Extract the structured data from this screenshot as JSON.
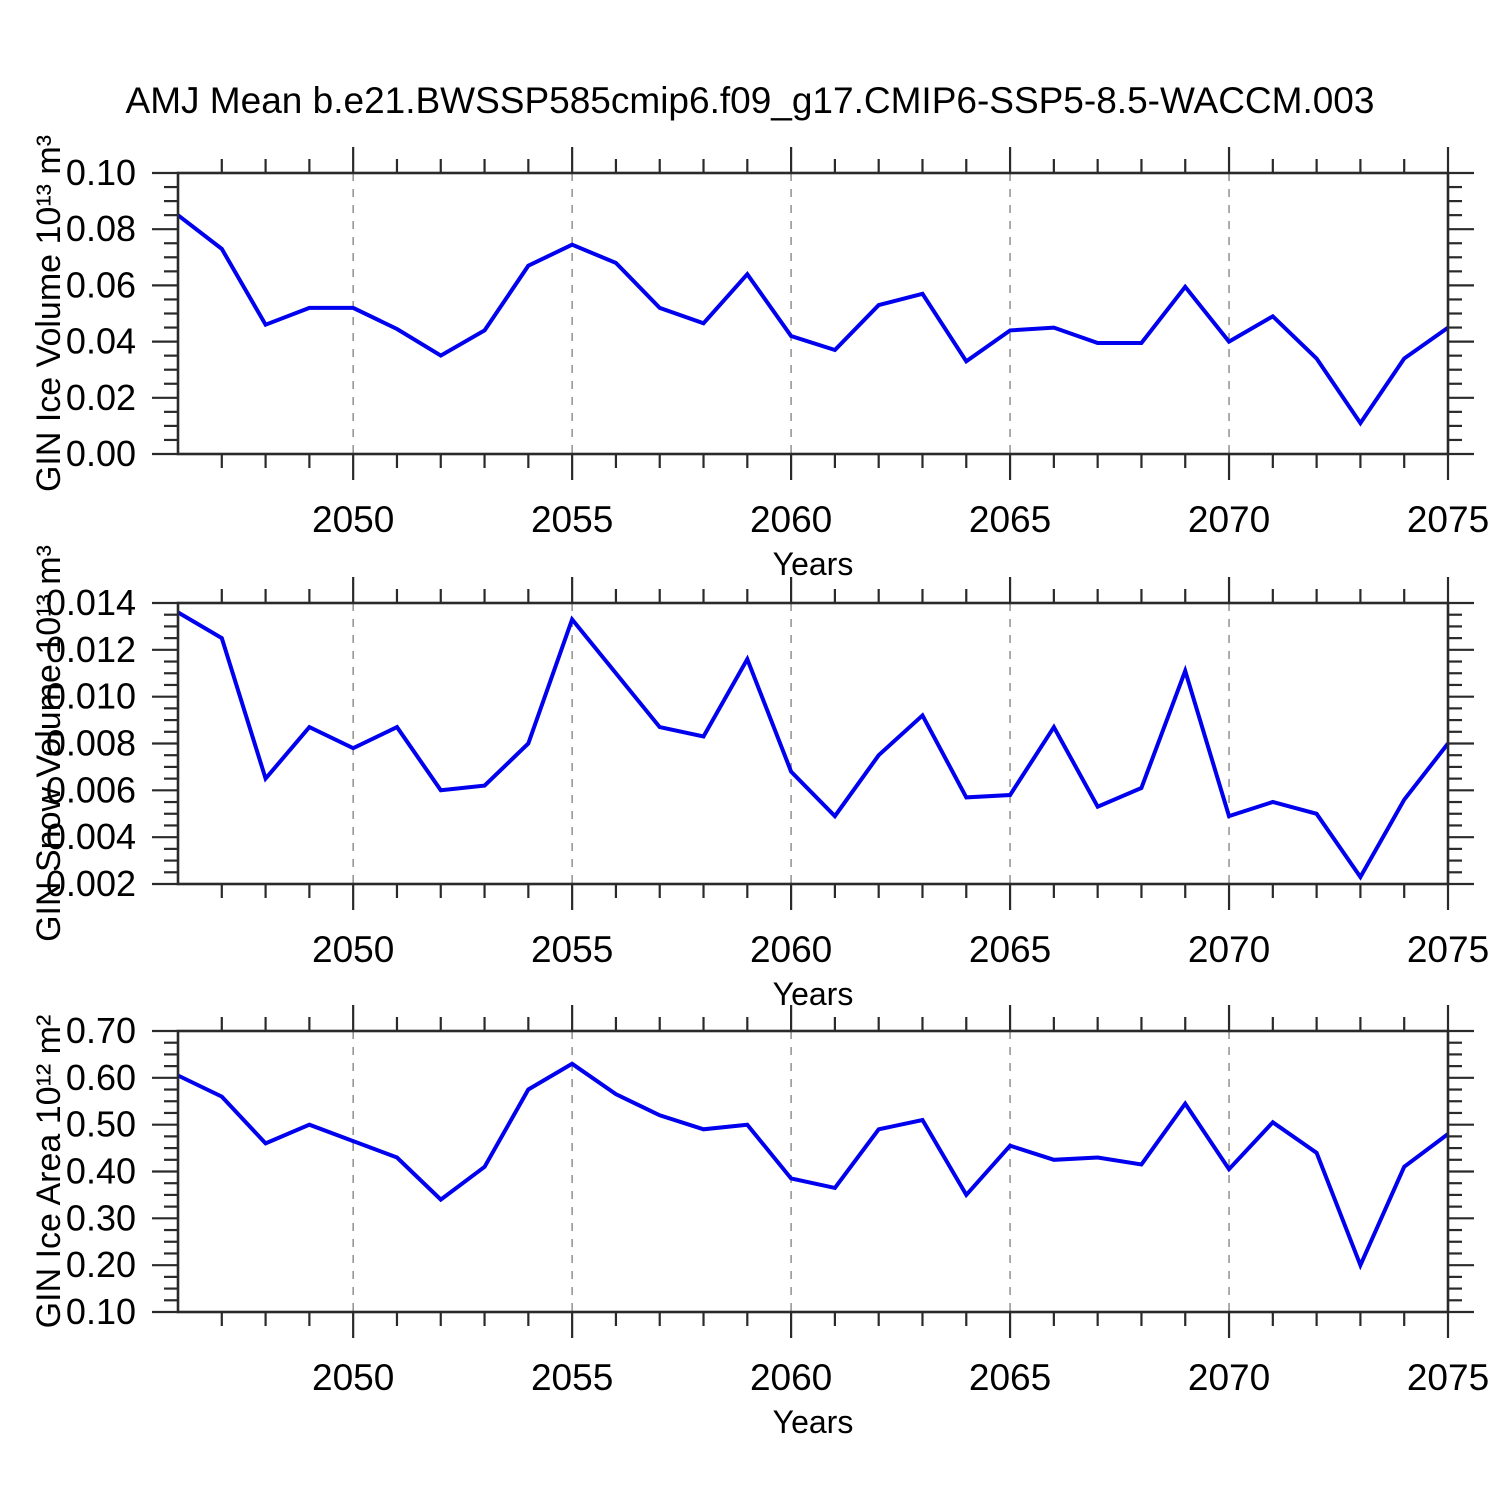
{
  "title": "AMJ Mean b.e21.BWSSP585cmip6.f09_g17.CMIP6-SSP5-8.5-WACCM.003",
  "colors": {
    "line": "#0000ee",
    "grid": "#909090",
    "axis": "#2a2a2a",
    "text": "#000000",
    "background": "#ffffff"
  },
  "chart_data": [
    {
      "type": "line",
      "name": "gin-ice-volume",
      "ylabel": "GIN Ice Volume 10¹³ m³",
      "xlabel": "Years",
      "xlim": [
        2046,
        2075
      ],
      "ylim": [
        0.0,
        0.1
      ],
      "x": [
        2046,
        2047,
        2048,
        2049,
        2050,
        2051,
        2052,
        2053,
        2054,
        2055,
        2056,
        2057,
        2058,
        2059,
        2060,
        2061,
        2062,
        2063,
        2064,
        2065,
        2066,
        2067,
        2068,
        2069,
        2070,
        2071,
        2072,
        2073,
        2074,
        2075
      ],
      "values": [
        0.085,
        0.073,
        0.046,
        0.052,
        0.052,
        0.0445,
        0.035,
        0.044,
        0.067,
        0.0745,
        0.068,
        0.052,
        0.0465,
        0.064,
        0.042,
        0.037,
        0.053,
        0.057,
        0.033,
        0.044,
        0.045,
        0.0395,
        0.0395,
        0.0595,
        0.04,
        0.049,
        0.034,
        0.011,
        0.034,
        0.045
      ],
      "xtick_values": [
        2050,
        2055,
        2060,
        2065,
        2070,
        2075
      ],
      "xtick_labels": [
        "2050",
        "2055",
        "2060",
        "2065",
        "2070",
        "2075"
      ],
      "xminor_step": 1,
      "ytick_values": [
        0.0,
        0.02,
        0.04,
        0.06,
        0.08,
        0.1
      ],
      "ytick_labels": [
        "0.00",
        "0.02",
        "0.04",
        "0.06",
        "0.08",
        "0.10"
      ],
      "yminor_step": 0.005,
      "grid_x_values": [
        2050,
        2055,
        2060,
        2065,
        2070
      ],
      "grid": "vertical-dashed",
      "legend": "none"
    },
    {
      "type": "line",
      "name": "gin-snow-volume",
      "ylabel": "GIN Snow Volume 10¹³ m³",
      "xlabel": "Years",
      "xlim": [
        2046,
        2075
      ],
      "ylim": [
        0.002,
        0.014
      ],
      "x": [
        2046,
        2047,
        2048,
        2049,
        2050,
        2051,
        2052,
        2053,
        2054,
        2055,
        2056,
        2057,
        2058,
        2059,
        2060,
        2061,
        2062,
        2063,
        2064,
        2065,
        2066,
        2067,
        2068,
        2069,
        2070,
        2071,
        2072,
        2073,
        2074,
        2075
      ],
      "values": [
        0.0136,
        0.0125,
        0.0065,
        0.0087,
        0.0078,
        0.0087,
        0.006,
        0.0062,
        0.008,
        0.0133,
        0.011,
        0.0087,
        0.0083,
        0.0116,
        0.0068,
        0.0049,
        0.0075,
        0.0092,
        0.0057,
        0.0058,
        0.0087,
        0.0053,
        0.0061,
        0.0111,
        0.0049,
        0.0055,
        0.005,
        0.0023,
        0.0056,
        0.008
      ],
      "xtick_values": [
        2050,
        2055,
        2060,
        2065,
        2070,
        2075
      ],
      "xtick_labels": [
        "2050",
        "2055",
        "2060",
        "2065",
        "2070",
        "2075"
      ],
      "xminor_step": 1,
      "ytick_values": [
        0.002,
        0.004,
        0.006,
        0.008,
        0.01,
        0.012,
        0.014
      ],
      "ytick_labels": [
        "0.002",
        "0.004",
        "0.006",
        "0.008",
        "0.010",
        "0.012",
        "0.014"
      ],
      "yminor_step": 0.0005,
      "grid_x_values": [
        2050,
        2055,
        2060,
        2065,
        2070
      ],
      "grid": "vertical-dashed",
      "legend": "none"
    },
    {
      "type": "line",
      "name": "gin-ice-area",
      "ylabel": "GIN Ice Area 10¹² m²",
      "xlabel": "Years",
      "xlim": [
        2046,
        2075
      ],
      "ylim": [
        0.1,
        0.7
      ],
      "x": [
        2046,
        2047,
        2048,
        2049,
        2050,
        2051,
        2052,
        2053,
        2054,
        2055,
        2056,
        2057,
        2058,
        2059,
        2060,
        2061,
        2062,
        2063,
        2064,
        2065,
        2066,
        2067,
        2068,
        2069,
        2070,
        2071,
        2072,
        2073,
        2074,
        2075
      ],
      "values": [
        0.605,
        0.56,
        0.46,
        0.5,
        0.465,
        0.43,
        0.34,
        0.41,
        0.575,
        0.63,
        0.565,
        0.52,
        0.49,
        0.5,
        0.385,
        0.365,
        0.49,
        0.51,
        0.35,
        0.455,
        0.425,
        0.43,
        0.415,
        0.545,
        0.405,
        0.505,
        0.44,
        0.2,
        0.41,
        0.48
      ],
      "xtick_values": [
        2050,
        2055,
        2060,
        2065,
        2070,
        2075
      ],
      "xtick_labels": [
        "2050",
        "2055",
        "2060",
        "2065",
        "2070",
        "2075"
      ],
      "xminor_step": 1,
      "ytick_values": [
        0.1,
        0.2,
        0.3,
        0.4,
        0.5,
        0.6,
        0.7
      ],
      "ytick_labels": [
        "0.10",
        "0.20",
        "0.30",
        "0.40",
        "0.50",
        "0.60",
        "0.70"
      ],
      "yminor_step": 0.025,
      "grid_x_values": [
        2050,
        2055,
        2060,
        2065,
        2070
      ],
      "grid": "vertical-dashed",
      "legend": "none"
    }
  ]
}
